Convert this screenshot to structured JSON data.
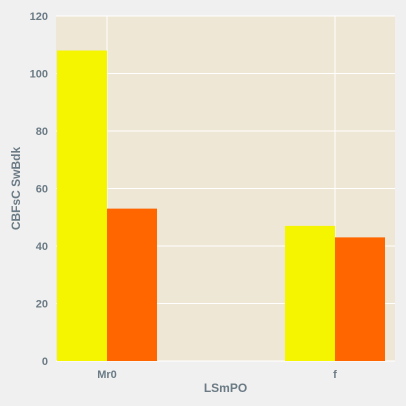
{
  "chart_data": {
    "type": "bar",
    "categories": [
      "Mr0",
      "f"
    ],
    "series": [
      {
        "values": [
          108,
          47
        ],
        "color": "#f5f500"
      },
      {
        "values": [
          53,
          43
        ],
        "color": "#ff6600"
      }
    ],
    "title": "",
    "xlabel": "LSmPO",
    "ylabel": "CBFsC SwBdk",
    "ylim": [
      0,
      120
    ],
    "yticks": [
      0,
      20,
      40,
      60,
      80,
      100,
      120
    ],
    "grid": true,
    "plot_background": "#efe7d6",
    "grid_color": "#ffffff",
    "text_color": "#6b7b85"
  }
}
